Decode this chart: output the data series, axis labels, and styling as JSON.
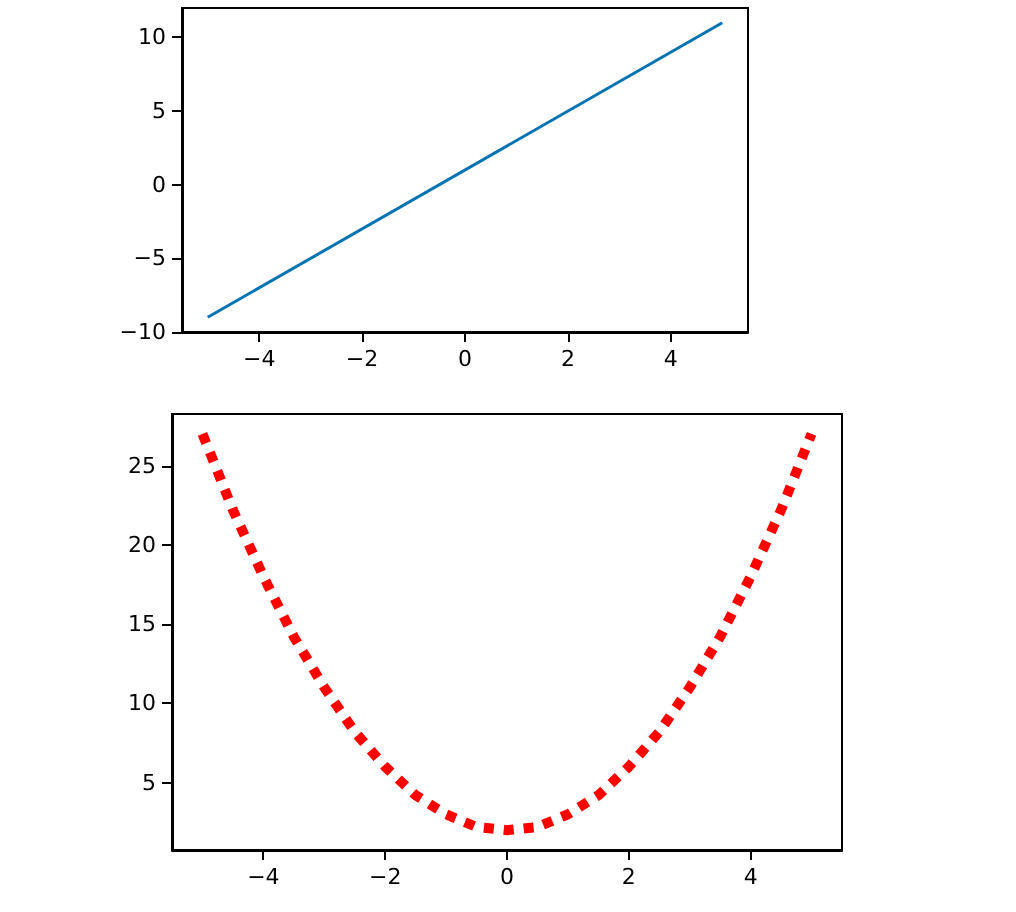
{
  "chart_data": [
    {
      "type": "line",
      "x": [
        -5,
        5
      ],
      "series": [
        {
          "color": "#0173b2",
          "values": [
            -9,
            11
          ]
        }
      ],
      "xlim": [
        -5.5,
        5.5
      ],
      "ylim": [
        -10,
        12
      ],
      "xticks": [
        -4,
        -2,
        0,
        2,
        4
      ],
      "yticks": [
        -10,
        -5,
        0,
        5,
        10
      ],
      "grid": false,
      "marker": "none",
      "line_style": "solid"
    },
    {
      "type": "line",
      "x": [
        -5,
        -4.5,
        -4,
        -3.5,
        -3,
        -2.5,
        -2,
        -1.5,
        -1,
        -0.5,
        0,
        0.5,
        1,
        1.5,
        2,
        2.5,
        3,
        3.5,
        4,
        4.5,
        5
      ],
      "series": [
        {
          "color": "#ff0000",
          "values": [
            27,
            22.2,
            18,
            14.2,
            11,
            8.2,
            6,
            4.2,
            3,
            2.2,
            2,
            2.2,
            3,
            4.2,
            6,
            8.2,
            11,
            14.2,
            18,
            22.2,
            27
          ]
        }
      ],
      "xlim": [
        -5.5,
        5.5
      ],
      "ylim": [
        0.75,
        28.25
      ],
      "xticks": [
        -4,
        -2,
        0,
        2,
        4
      ],
      "yticks": [
        5,
        10,
        15,
        20,
        25
      ],
      "grid": false,
      "marker": "none",
      "line_style": "dotted"
    }
  ]
}
